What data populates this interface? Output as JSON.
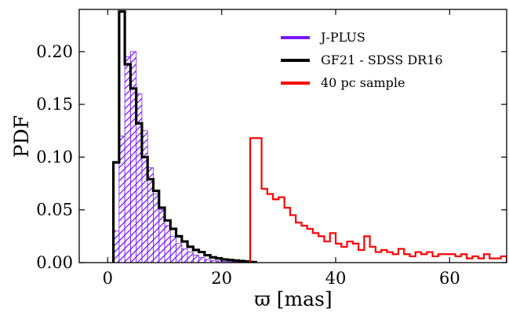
{
  "chart_data": {
    "type": "histogram",
    "xlabel": "ϖ [mas]",
    "ylabel": "PDF",
    "xlim": [
      -5,
      70
    ],
    "ylim": [
      0,
      0.24
    ],
    "xticks": [
      0,
      20,
      40,
      60
    ],
    "yticks": [
      0.0,
      0.05,
      0.1,
      0.15,
      0.2
    ],
    "xtick_labels": [
      "0",
      "20",
      "40",
      "60"
    ],
    "ytick_labels": [
      "0.00",
      "0.05",
      "0.10",
      "0.15",
      "0.20"
    ],
    "legend_position": "top-right",
    "legend": [
      {
        "label": "J-PLUS",
        "color": "#7b16ff"
      },
      {
        "label": "GF21 - SDSS DR16",
        "color": "#000000"
      },
      {
        "label": "40 pc sample",
        "color": "#ff0000"
      }
    ],
    "series": [
      {
        "name": "J-PLUS",
        "style": "hatched-fill",
        "color": "#7b16ff",
        "bin_edges": [
          1,
          2,
          3,
          4,
          5,
          6,
          7,
          8,
          9,
          10,
          11,
          12,
          13,
          14,
          15,
          16,
          17,
          18,
          19,
          20,
          21,
          22,
          23,
          24,
          25
        ],
        "values": [
          0.03,
          0.12,
          0.195,
          0.2,
          0.16,
          0.125,
          0.09,
          0.065,
          0.05,
          0.035,
          0.025,
          0.018,
          0.013,
          0.01,
          0.007,
          0.005,
          0.003,
          0.002,
          0.0015,
          0.001,
          0.0008,
          0.0005,
          0.0003,
          0.0002
        ]
      },
      {
        "name": "GF21 - SDSS DR16",
        "style": "step",
        "color": "#000000",
        "bin_edges": [
          1,
          2,
          3,
          4,
          5,
          6,
          7,
          8,
          9,
          10,
          11,
          12,
          13,
          14,
          15,
          16,
          17,
          18,
          19,
          20,
          21,
          22,
          23,
          24,
          25,
          26
        ],
        "values": [
          0.095,
          0.238,
          0.188,
          0.165,
          0.132,
          0.1,
          0.079,
          0.068,
          0.052,
          0.04,
          0.032,
          0.025,
          0.02,
          0.015,
          0.012,
          0.01,
          0.007,
          0.005,
          0.004,
          0.003,
          0.0025,
          0.002,
          0.0015,
          0.001,
          0.0005
        ]
      },
      {
        "name": "40 pc sample",
        "style": "step",
        "color": "#ff0000",
        "bin_edges": [
          25,
          26,
          27,
          28,
          29,
          30,
          31,
          32,
          33,
          34,
          35,
          36,
          37,
          38,
          39,
          40,
          41,
          42,
          43,
          44,
          45,
          46,
          47,
          48,
          49,
          50,
          51,
          52,
          53,
          54,
          55,
          56,
          57,
          58,
          59,
          60,
          61,
          62,
          63,
          64,
          65,
          66,
          67,
          68,
          69,
          70
        ],
        "values": [
          0.118,
          0.118,
          0.07,
          0.065,
          0.06,
          0.062,
          0.052,
          0.045,
          0.038,
          0.035,
          0.032,
          0.028,
          0.025,
          0.02,
          0.028,
          0.018,
          0.015,
          0.02,
          0.018,
          0.012,
          0.025,
          0.015,
          0.01,
          0.012,
          0.01,
          0.008,
          0.013,
          0.008,
          0.006,
          0.01,
          0.008,
          0.01,
          0.006,
          0.008,
          0.008,
          0.008,
          0.006,
          0.008,
          0.004,
          0.006,
          0.004,
          0.008,
          0.004,
          0.004,
          0.006
        ]
      }
    ]
  }
}
